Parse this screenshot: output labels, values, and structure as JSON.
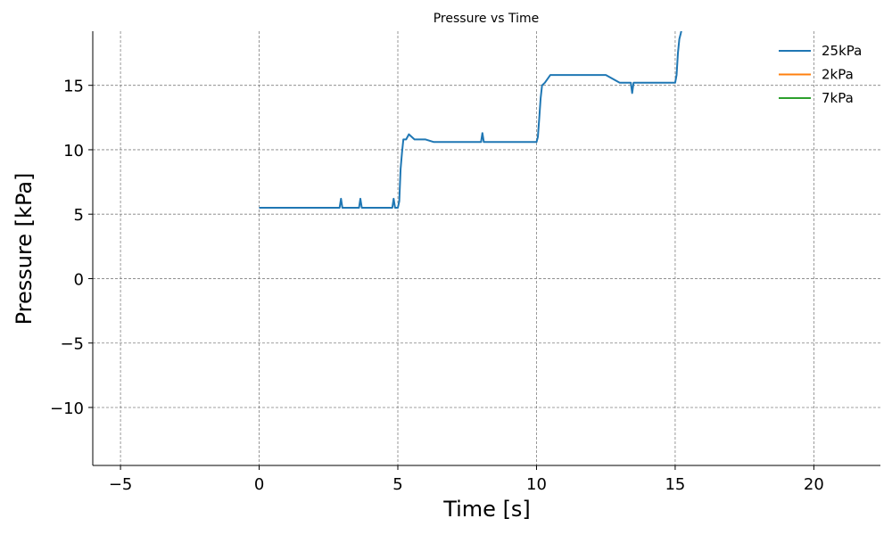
{
  "chart_data": {
    "type": "line",
    "title": "Pressure vs Time",
    "xlabel": "Time [s]",
    "ylabel": "Pressure [kPa]",
    "xlim": [
      -6,
      22.4
    ],
    "ylim": [
      -14.5,
      19.2
    ],
    "xticks": [
      -5,
      0,
      5,
      10,
      15,
      20
    ],
    "yticks": [
      -10,
      -5,
      0,
      5,
      10,
      15
    ],
    "xtick_labels": [
      "−5",
      "0",
      "5",
      "10",
      "15",
      "20"
    ],
    "ytick_labels": [
      "−10",
      "−5",
      "0",
      "5",
      "10",
      "15"
    ],
    "grid": true,
    "legend_position": "top-right",
    "series": [
      {
        "name": "25kPa",
        "color": "#1f77b4",
        "x": [
          0,
          0.5,
          1.0,
          1.5,
          2.0,
          2.5,
          2.9,
          2.95,
          3.0,
          3.5,
          3.6,
          3.65,
          3.7,
          4.0,
          4.5,
          4.8,
          4.85,
          4.9,
          5.0,
          5.05,
          5.1,
          5.15,
          5.2,
          5.3,
          5.4,
          5.6,
          5.8,
          6.0,
          6.3,
          6.5,
          7.0,
          7.5,
          8.0,
          8.05,
          8.1,
          8.5,
          9.0,
          9.5,
          10.0,
          10.05,
          10.1,
          10.15,
          10.2,
          10.3,
          10.5,
          11.0,
          11.5,
          12.0,
          12.5,
          13.0,
          13.4,
          13.45,
          13.5,
          14.0,
          14.5,
          15.0,
          15.05,
          15.1,
          15.15,
          15.2,
          15.25
        ],
        "y": [
          5.5,
          5.5,
          5.5,
          5.5,
          5.5,
          5.5,
          5.5,
          6.2,
          5.5,
          5.5,
          5.5,
          6.2,
          5.5,
          5.5,
          5.5,
          5.5,
          6.2,
          5.5,
          5.5,
          6.0,
          8.5,
          9.8,
          10.8,
          10.8,
          11.2,
          10.8,
          10.8,
          10.8,
          10.6,
          10.6,
          10.6,
          10.6,
          10.6,
          11.3,
          10.6,
          10.6,
          10.6,
          10.6,
          10.6,
          11.0,
          12.5,
          14.0,
          15.0,
          15.2,
          15.8,
          15.8,
          15.8,
          15.8,
          15.8,
          15.2,
          15.2,
          14.4,
          15.2,
          15.2,
          15.2,
          15.2,
          15.8,
          17.5,
          18.6,
          19.0,
          19.5
        ]
      },
      {
        "name": "2kPa",
        "color": "#ff7f0e",
        "x": [],
        "y": []
      },
      {
        "name": "7kPa",
        "color": "#2ca02c",
        "x": [],
        "y": []
      }
    ]
  }
}
